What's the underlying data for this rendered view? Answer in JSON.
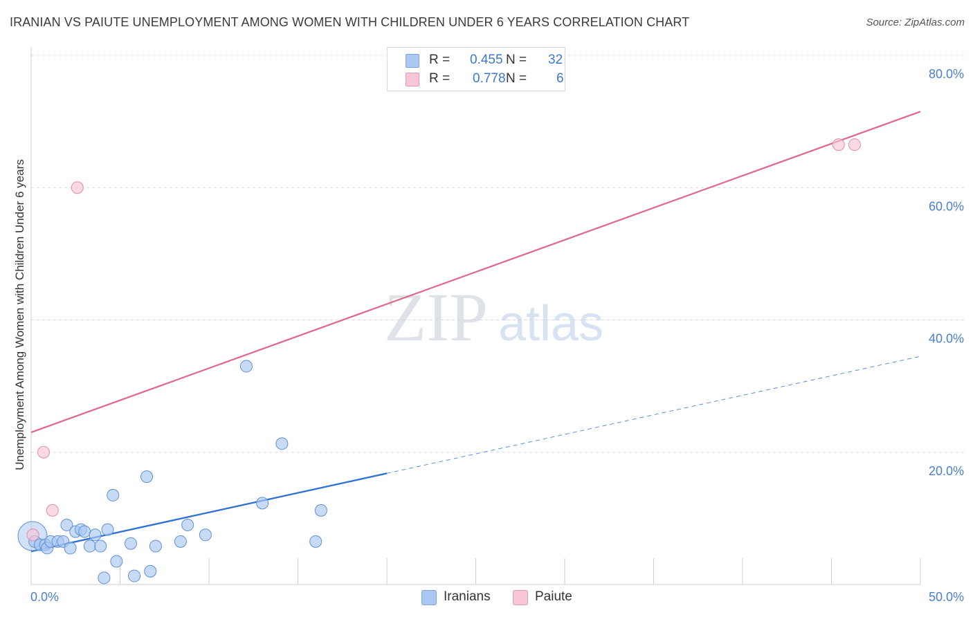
{
  "title": "IRANIAN VS PAIUTE UNEMPLOYMENT AMONG WOMEN WITH CHILDREN UNDER 6 YEARS CORRELATION CHART",
  "source": "Source: ZipAtlas.com",
  "watermark": {
    "part1": "ZIP",
    "part2": "atlas"
  },
  "legend": {
    "rows": [
      {
        "r_label": "R =",
        "r_value": "0.455",
        "n_label": "N =",
        "n_value": "32",
        "color": "#a9c8f2",
        "border": "#7aa6e0"
      },
      {
        "r_label": "R =",
        "r_value": "0.778",
        "n_label": "N =",
        "n_value": "6",
        "color": "#f8c6d4",
        "border": "#eb97b0"
      }
    ]
  },
  "bottom_legend": [
    {
      "label": "Iranians",
      "color": "#a9c8f2",
      "border": "#7aa6e0"
    },
    {
      "label": "Paiute",
      "color": "#f8c6d4",
      "border": "#eb97b0"
    }
  ],
  "chart_data": {
    "type": "scatter",
    "title": "IRANIAN VS PAIUTE UNEMPLOYMENT AMONG WOMEN WITH CHILDREN UNDER 6 YEARS CORRELATION CHART",
    "xlabel": "",
    "ylabel": "Unemployment Among Women with Children Under 6 years",
    "xlim": [
      0,
      50
    ],
    "ylim": [
      0,
      80
    ],
    "x_tick_labels": [
      "0.0%",
      "50.0%"
    ],
    "y_ticks": [
      20,
      40,
      60,
      80
    ],
    "y_tick_labels": [
      "20.0%",
      "40.0%",
      "60.0%",
      "80.0%"
    ],
    "grid": true,
    "series": [
      {
        "name": "Iranians",
        "color": "#a9c8f2",
        "stroke": "#5d8fd8",
        "line_color": "#2f72d2",
        "points": [
          [
            0.2,
            6.5
          ],
          [
            0.5,
            6.0
          ],
          [
            0.8,
            6.0
          ],
          [
            0.9,
            5.5
          ],
          [
            1.1,
            6.5
          ],
          [
            1.5,
            6.5
          ],
          [
            1.8,
            6.5
          ],
          [
            2.0,
            9.0
          ],
          [
            2.2,
            5.5
          ],
          [
            2.5,
            8.0
          ],
          [
            2.8,
            8.3
          ],
          [
            3.0,
            8.0
          ],
          [
            3.3,
            5.8
          ],
          [
            3.6,
            7.5
          ],
          [
            3.9,
            5.8
          ],
          [
            4.1,
            1.0
          ],
          [
            4.3,
            8.3
          ],
          [
            4.6,
            13.5
          ],
          [
            4.8,
            3.5
          ],
          [
            5.6,
            6.2
          ],
          [
            5.8,
            1.3
          ],
          [
            6.5,
            16.3
          ],
          [
            6.7,
            2.0
          ],
          [
            7.0,
            5.8
          ],
          [
            8.4,
            6.5
          ],
          [
            8.8,
            9.0
          ],
          [
            9.8,
            7.5
          ],
          [
            12.1,
            33.0
          ],
          [
            13.0,
            12.3
          ],
          [
            14.1,
            21.3
          ],
          [
            16.0,
            6.5
          ],
          [
            16.3,
            11.2
          ]
        ],
        "trend": {
          "x0": 0,
          "y0": 5.0,
          "x1": 20,
          "y1": 16.8,
          "dashed_to_x": 50,
          "dashed_to_y": 34.5
        }
      },
      {
        "name": "Paiute",
        "color": "#f8c6d4",
        "stroke": "#e58ba6",
        "line_color": "#e0668c",
        "points": [
          [
            0.1,
            7.5
          ],
          [
            0.7,
            20.0
          ],
          [
            1.2,
            11.2
          ],
          [
            2.6,
            60.0
          ],
          [
            45.4,
            66.5
          ],
          [
            46.3,
            66.5
          ]
        ],
        "trend": {
          "x0": 0,
          "y0": 23.0,
          "x1": 50,
          "y1": 71.5
        }
      }
    ]
  }
}
